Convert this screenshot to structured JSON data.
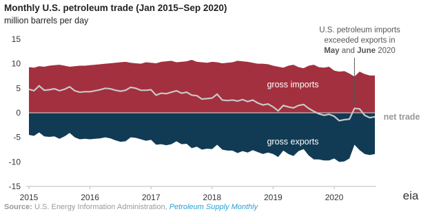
{
  "chart_data": {
    "type": "area",
    "title": "Monthly U.S. petroleum trade (Jan 2015–Sep 2020)",
    "y_label": "million barrels per day",
    "x": [
      2015,
      2015.083,
      2015.167,
      2015.25,
      2015.333,
      2015.417,
      2015.5,
      2015.583,
      2015.667,
      2015.75,
      2015.833,
      2015.917,
      2016,
      2016.083,
      2016.167,
      2016.25,
      2016.333,
      2016.417,
      2016.5,
      2016.583,
      2016.667,
      2016.75,
      2016.833,
      2016.917,
      2017,
      2017.083,
      2017.167,
      2017.25,
      2017.333,
      2017.417,
      2017.5,
      2017.583,
      2017.667,
      2017.75,
      2017.833,
      2017.917,
      2018,
      2018.083,
      2018.167,
      2018.25,
      2018.333,
      2018.417,
      2018.5,
      2018.583,
      2018.667,
      2018.75,
      2018.833,
      2018.917,
      2019,
      2019.083,
      2019.167,
      2019.25,
      2019.333,
      2019.417,
      2019.5,
      2019.583,
      2019.667,
      2019.75,
      2019.833,
      2019.917,
      2020,
      2020.083,
      2020.167,
      2020.25,
      2020.333,
      2020.417,
      2020.5,
      2020.583,
      2020.667
    ],
    "series": [
      {
        "name": "gross imports",
        "color": "#a3303e",
        "style": "area",
        "values": [
          9.3,
          9.2,
          9.5,
          9.4,
          9.6,
          9.7,
          9.8,
          9.6,
          9.4,
          9.5,
          9.6,
          9.6,
          9.7,
          9.8,
          9.9,
          10.0,
          10.1,
          10.2,
          10.3,
          10.4,
          10.2,
          10.1,
          10.0,
          10.3,
          10.2,
          10.1,
          10.4,
          10.5,
          10.6,
          10.3,
          10.4,
          10.5,
          10.8,
          10.4,
          10.3,
          10.2,
          10.4,
          10.3,
          10.1,
          10.2,
          10.3,
          10.6,
          10.5,
          10.4,
          10.2,
          10.0,
          10.0,
          9.9,
          9.6,
          9.4,
          9.2,
          9.6,
          9.8,
          9.3,
          9.1,
          9.6,
          9.8,
          9.3,
          9.2,
          9.4,
          8.6,
          8.4,
          8.5,
          8.0,
          7.4,
          8.4,
          7.9,
          7.6,
          7.6
        ]
      },
      {
        "name": "gross exports",
        "color": "#113b54",
        "style": "area",
        "values": [
          -4.5,
          -4.7,
          -4.0,
          -4.8,
          -4.9,
          -4.8,
          -5.3,
          -4.8,
          -4.1,
          -5.0,
          -5.4,
          -5.3,
          -5.4,
          -5.3,
          -5.2,
          -5.0,
          -5.2,
          -5.6,
          -5.9,
          -5.8,
          -5.0,
          -5.1,
          -5.4,
          -5.7,
          -5.5,
          -6.5,
          -6.4,
          -6.6,
          -6.4,
          -5.8,
          -6.4,
          -6.3,
          -7.2,
          -6.9,
          -7.5,
          -7.3,
          -7.4,
          -6.5,
          -7.5,
          -7.7,
          -7.7,
          -8.2,
          -7.8,
          -8.1,
          -7.6,
          -8.0,
          -8.4,
          -8.1,
          -8.4,
          -9.0,
          -7.7,
          -8.4,
          -8.8,
          -7.8,
          -7.4,
          -8.7,
          -9.5,
          -9.5,
          -9.7,
          -9.7,
          -9.3,
          -10.0,
          -9.9,
          -9.3,
          -6.5,
          -7.6,
          -8.4,
          -8.6,
          -8.4
        ]
      },
      {
        "name": "net trade",
        "color": "#c9c9c9",
        "style": "line",
        "values": [
          4.8,
          4.5,
          5.5,
          4.6,
          4.7,
          4.9,
          4.5,
          4.8,
          5.3,
          4.5,
          4.2,
          4.3,
          4.3,
          4.5,
          4.7,
          5.0,
          4.9,
          4.6,
          4.4,
          4.6,
          5.2,
          5.0,
          4.6,
          4.6,
          4.7,
          3.6,
          4.0,
          3.9,
          4.2,
          4.5,
          4.0,
          4.2,
          3.6,
          3.5,
          2.8,
          2.9,
          3.0,
          3.8,
          2.6,
          2.5,
          2.6,
          2.4,
          2.7,
          2.3,
          2.6,
          2.0,
          1.6,
          1.8,
          1.2,
          0.4,
          1.5,
          1.2,
          1.0,
          1.5,
          1.7,
          0.9,
          0.3,
          -0.2,
          -0.5,
          -0.3,
          -0.7,
          -1.6,
          -1.4,
          -1.3,
          0.9,
          0.8,
          -0.5,
          -1.0,
          -0.8
        ]
      }
    ],
    "xlim": [
      2015,
      2020.667
    ],
    "xticks": [
      2015,
      2016,
      2017,
      2018,
      2019,
      2020
    ],
    "ylim": [
      -15,
      15
    ],
    "yticks": [
      -15,
      -10,
      -5,
      0,
      5,
      10,
      15
    ],
    "annotation": {
      "lines": [
        "U.S. petroleum imports",
        "exceeded exports in"
      ],
      "bold_1": "May",
      "middle": "and",
      "bold_2": "June",
      "end": "2020",
      "x": 2020.333
    },
    "source": {
      "label": "Source:",
      "text": "U.S. Energy Information Administration,",
      "link": "Petroleum Supply Monthly"
    },
    "logo": "eia"
  }
}
